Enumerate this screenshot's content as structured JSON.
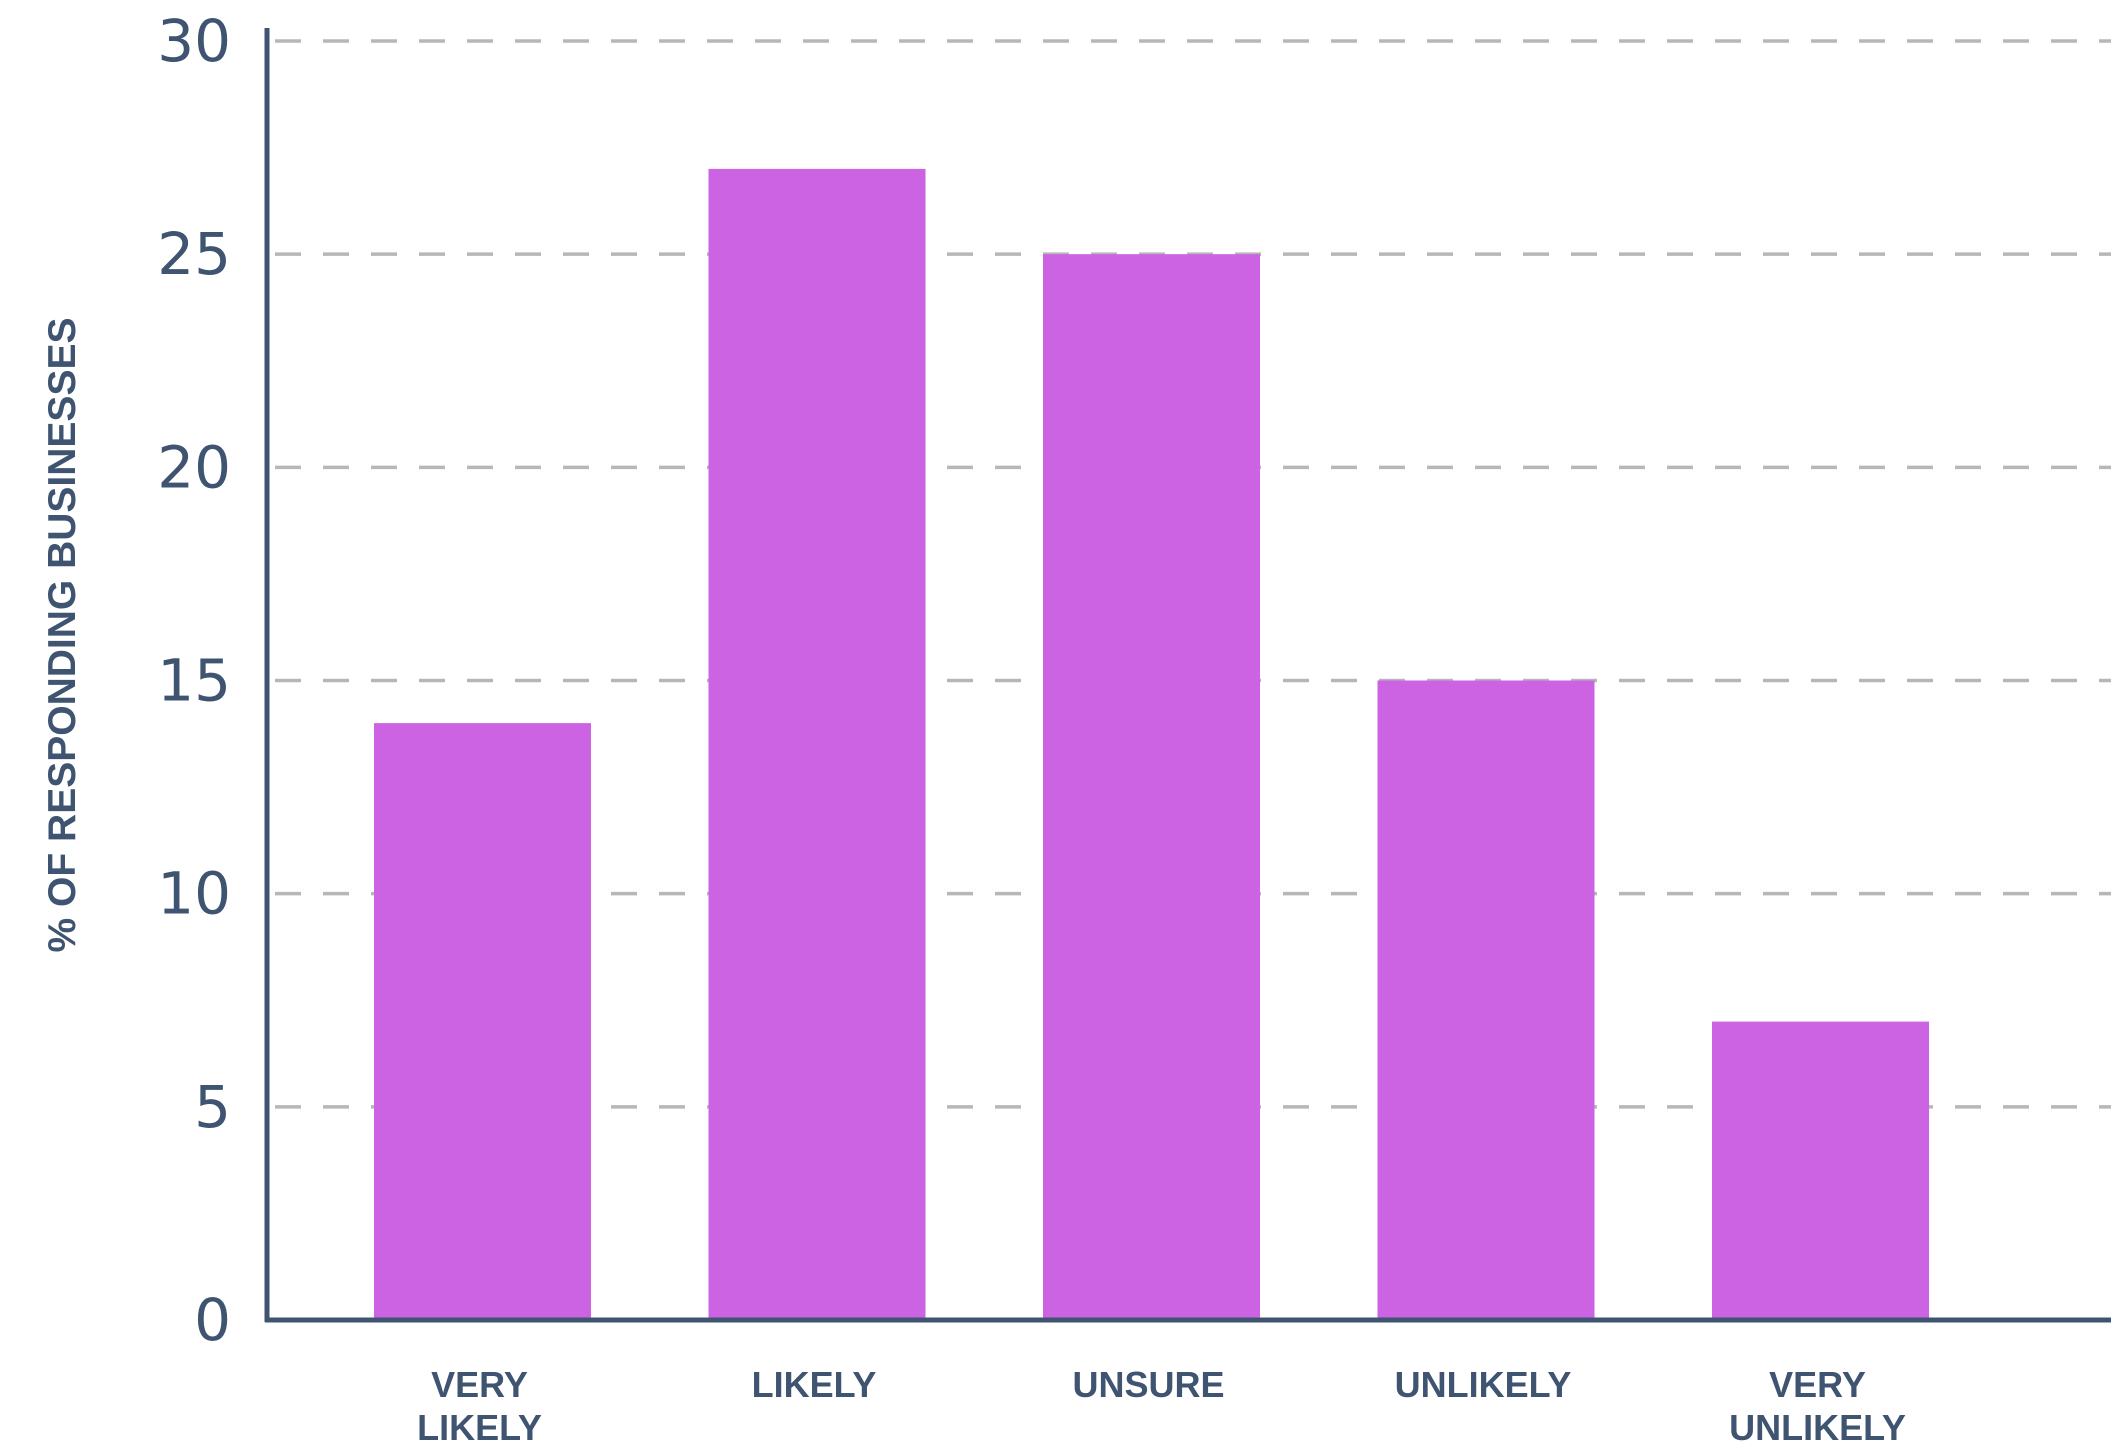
{
  "chart_data": {
    "type": "bar",
    "categories": [
      [
        "VERY",
        "LIKELY"
      ],
      [
        "LIKELY"
      ],
      [
        "UNSURE"
      ],
      [
        "UNLIKELY"
      ],
      [
        "VERY",
        "UNLIKELY"
      ]
    ],
    "values": [
      14,
      27,
      25,
      15,
      7
    ],
    "title": "",
    "xlabel": "",
    "ylabel": "% OF RESPONDING BUSINESSES",
    "ylim": [
      0,
      30
    ],
    "yticks": [
      "0",
      "5",
      "10",
      "15",
      "20",
      "25",
      "30"
    ],
    "grid": true,
    "colors": {
      "bar": "#cc63e3",
      "axis": "#3f5470",
      "grid": "#b7b7b7",
      "text": "#3f5470"
    }
  }
}
